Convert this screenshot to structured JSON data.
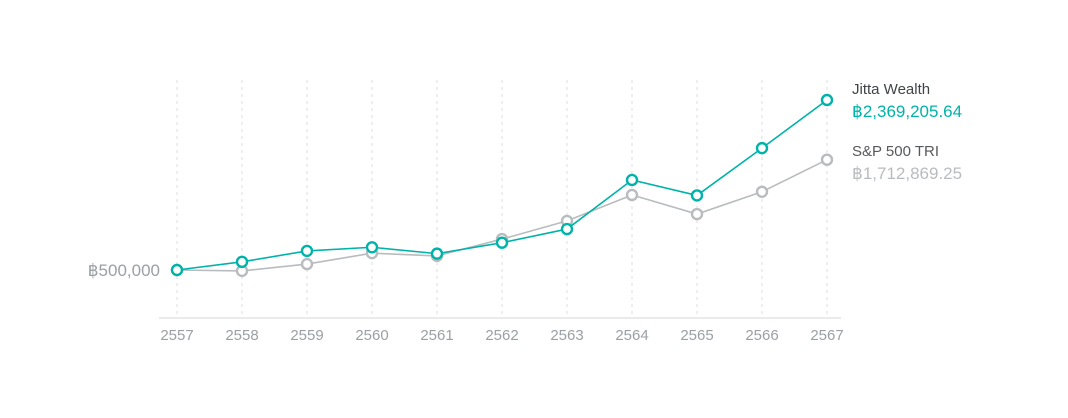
{
  "chart_data": {
    "type": "line",
    "title": "",
    "xlabel": "",
    "ylabel": "฿500,000",
    "baseline_value": 500000,
    "grid": "vertical-dashed",
    "legend_position": "right",
    "categories": [
      "2557",
      "2558",
      "2559",
      "2560",
      "2561",
      "2562",
      "2563",
      "2564",
      "2565",
      "2566",
      "2567"
    ],
    "series": [
      {
        "name": "Jitta Wealth",
        "color": "#00b3a9",
        "value_label": "฿2,369,205.64",
        "final_value": 2369205.64,
        "values": [
          500000,
          590000,
          710000,
          750000,
          680000,
          800000,
          950000,
          1490000,
          1320000,
          1840000,
          2369205.64
        ]
      },
      {
        "name": "S&P 500 TRI",
        "color": "#b9bcbe",
        "value_label": "฿1,712,869.25",
        "final_value": 1712869.25,
        "values": [
          500000,
          490000,
          565000,
          685000,
          655000,
          840000,
          1040000,
          1325000,
          1115000,
          1360000,
          1712869.25
        ]
      }
    ],
    "axis_label_color": "#9aa0a4",
    "gridline_color": "#dadddf",
    "axis_line_color": "#d2d5d7"
  },
  "legend": {
    "jitta_name": "Jitta Wealth",
    "jitta_value": "฿2,369,205.64",
    "sp_name": "S&P 500 TRI",
    "sp_value": "฿1,712,869.25"
  }
}
